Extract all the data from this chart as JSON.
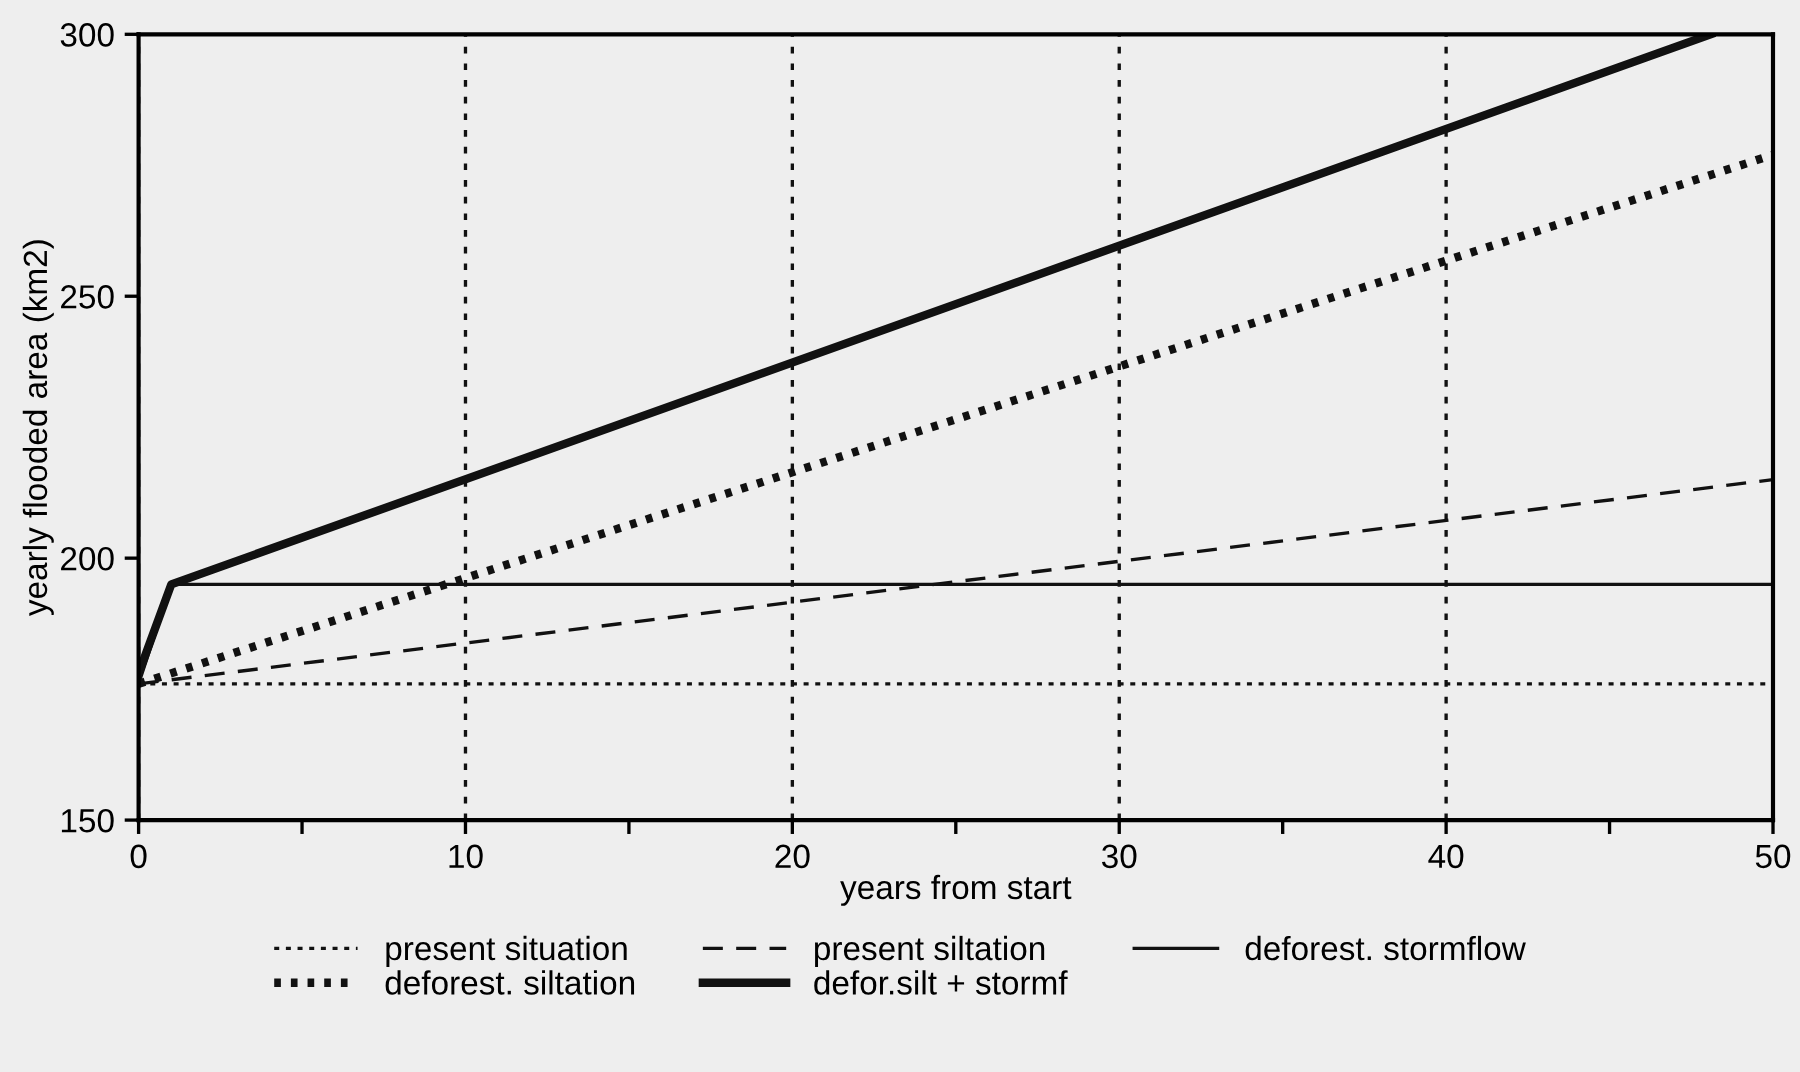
{
  "chart_data": {
    "type": "line",
    "xlabel": "years from start",
    "ylabel": "yearly flooded area (km2)",
    "xlim": [
      0,
      50
    ],
    "ylim": [
      150,
      300
    ],
    "xticks": [
      0,
      {
        "value": 5,
        "label": null
      },
      10,
      {
        "value": 15,
        "label": null
      },
      20,
      {
        "value": 25,
        "label": null
      },
      30,
      {
        "value": 35,
        "label": null
      },
      40,
      {
        "value": 45,
        "label": null
      },
      50
    ],
    "yticks": [
      150,
      200,
      250,
      300
    ],
    "grid": "x",
    "legend": "bottom",
    "marker": "none",
    "series": [
      {
        "name": "present situation",
        "color": "#111111",
        "x": [
          0,
          50
        ],
        "values": [
          176,
          176
        ],
        "line_style": "dotted"
      },
      {
        "name": "present siltation",
        "color": "#111111",
        "x": [
          0,
          50
        ],
        "values": [
          176,
          215
        ],
        "line_style": "dashed"
      },
      {
        "name": "deforest. stormflow",
        "color": "#111111",
        "x": [
          0,
          1,
          50
        ],
        "values": [
          176,
          195,
          195
        ],
        "line_style": "solid"
      },
      {
        "name": "deforest. siltation",
        "color": "#111111",
        "x": [
          0,
          50
        ],
        "values": [
          176,
          277
        ],
        "line_style": "dotted"
      },
      {
        "name": "defor.silt + stormf",
        "color": "#111111",
        "x": [
          0,
          1,
          48.1
        ],
        "values": [
          178,
          195,
          300
        ],
        "line_style": "solid"
      }
    ]
  }
}
